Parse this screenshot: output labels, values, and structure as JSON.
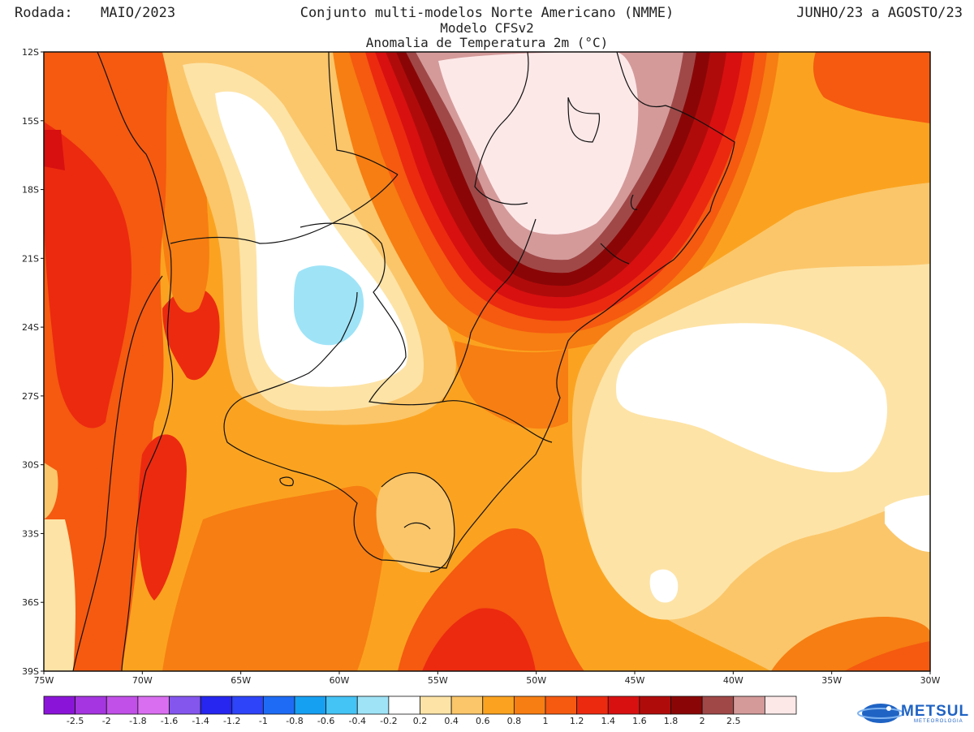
{
  "header": {
    "rodada_label": "Rodada:",
    "rodada_date": "MAIO/2023",
    "title": "Conjunto multi-modelos Norte Americano (NMME)",
    "model": "Modelo CFSv2",
    "variable": "Anomalia de Temperatura 2m (°C)",
    "period": "JUNHO/23 a AGOSTO/23"
  },
  "map": {
    "lon_range": [
      -75,
      -30
    ],
    "lat_range": [
      -39,
      -12
    ],
    "lon_ticks": [
      {
        "value": -75,
        "label": "75W"
      },
      {
        "value": -70,
        "label": "70W"
      },
      {
        "value": -65,
        "label": "65W"
      },
      {
        "value": -60,
        "label": "60W"
      },
      {
        "value": -55,
        "label": "55W"
      },
      {
        "value": -50,
        "label": "50W"
      },
      {
        "value": -45,
        "label": "45W"
      },
      {
        "value": -40,
        "label": "40W"
      },
      {
        "value": -35,
        "label": "35W"
      },
      {
        "value": -30,
        "label": "30W"
      }
    ],
    "lat_ticks": [
      {
        "value": -12,
        "label": "12S"
      },
      {
        "value": -15,
        "label": "15S"
      },
      {
        "value": -18,
        "label": "18S"
      },
      {
        "value": -21,
        "label": "21S"
      },
      {
        "value": -24,
        "label": "24S"
      },
      {
        "value": -27,
        "label": "27S"
      },
      {
        "value": -30,
        "label": "30S"
      },
      {
        "value": -33,
        "label": "33S"
      },
      {
        "value": -36,
        "label": "36S"
      },
      {
        "value": -39,
        "label": "39S"
      }
    ]
  },
  "legend": {
    "colors": [
      "#8a15d8",
      "#a535e0",
      "#c150e8",
      "#d96ef0",
      "#8456ee",
      "#2626f0",
      "#2d44f8",
      "#1e6cf5",
      "#16a0f2",
      "#44c3f5",
      "#9fe3f7",
      "#ffffff",
      "#fde3a6",
      "#fbc66a",
      "#fba320",
      "#f77e12",
      "#f55a10",
      "#ec2a10",
      "#d81010",
      "#b00b0b",
      "#8a0606",
      "#a04848",
      "#d49a9a",
      "#fde8e8"
    ],
    "labels": [
      "-2.5",
      "-2",
      "-1.8",
      "-1.6",
      "-1.4",
      "-1.2",
      "-1",
      "-0.8",
      "-0.6",
      "-0.4",
      "-0.2",
      "0.2",
      "0.4",
      "0.6",
      "0.8",
      "1",
      "1.2",
      "1.4",
      "1.6",
      "1.8",
      "2",
      "2.5"
    ]
  },
  "logo": {
    "name": "METSUL",
    "tagline": "METEOROLOGIA"
  }
}
